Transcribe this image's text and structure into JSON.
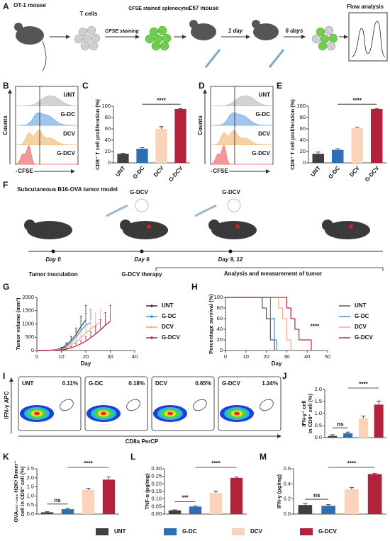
{
  "panel_labels": [
    "A",
    "B",
    "C",
    "D",
    "E",
    "F",
    "G",
    "H",
    "I",
    "J",
    "K",
    "L",
    "M"
  ],
  "diagram_a": {
    "labels": [
      "OT-1 mouse",
      "T cells",
      "CFSE staining",
      "CFSE stained splenocytes",
      "C57 mouse",
      "1 day",
      "6 days",
      "Flow analysis"
    ]
  },
  "flow_b": {
    "samples": [
      "UNT",
      "G-DC",
      "DCV",
      "G-DCV"
    ],
    "ylabel": "Counts",
    "xlabel": "CFSE"
  },
  "flow_d": {
    "samples": [
      "UNT",
      "G-DC",
      "DCV",
      "G-DCV"
    ],
    "ylabel": "Counts",
    "xlabel": "CFSE"
  },
  "diagram_f": {
    "title": "Subcutaneous B16-OVA tumor model",
    "treatments": [
      "G-DCV",
      "G-DCV"
    ],
    "days": [
      "Day 0",
      "Day 6",
      "Day 9, 12"
    ],
    "events": [
      "Tumor inoculation",
      "G-DCV therapy",
      "Analysis and measurement of tumor"
    ]
  },
  "flow_i": {
    "samples": [
      {
        "name": "UNT",
        "percent": "0.11%"
      },
      {
        "name": "G-DC",
        "percent": "0.18%"
      },
      {
        "name": "DCV",
        "percent": "0.65%"
      },
      {
        "name": "G-DCV",
        "percent": "1.24%"
      }
    ],
    "ylabel": "IFN-γ APC",
    "xlabel": "CD8a PerCP"
  },
  "legend": {
    "labels": [
      "UNT",
      "G-DC",
      "DCV",
      "G-DCV"
    ],
    "colors": [
      "#404040",
      "#2f6db5",
      "#fbd3b8",
      "#b2233b"
    ]
  },
  "chart_data": [
    {
      "type": "bar",
      "ylabel": "CD8⁺ T cell proliferation (%)",
      "categories": [
        "UNT",
        "G-DC",
        "DCV",
        "G-DCV"
      ],
      "values": [
        16,
        25,
        60,
        95
      ],
      "errors": [
        1,
        2,
        4,
        1
      ],
      "colors": [
        "#404040",
        "#2f6db5",
        "#fbd3b8",
        "#b2233b"
      ],
      "ylim": [
        0,
        100
      ],
      "yticks": [
        0,
        20,
        40,
        60,
        80,
        100
      ],
      "annotations": [
        "****"
      ]
    },
    {
      "type": "bar",
      "ylabel": "CD8⁺ T cell proliferation (%)",
      "categories": [
        "UNT",
        "G-DC",
        "DCV",
        "G-DCV"
      ],
      "values": [
        16,
        23,
        61,
        95
      ],
      "errors": [
        3,
        2,
        2,
        1
      ],
      "colors": [
        "#404040",
        "#2f6db5",
        "#fbd3b8",
        "#b2233b"
      ],
      "ylim": [
        0,
        100
      ],
      "yticks": [
        0,
        20,
        40,
        60,
        80,
        100
      ],
      "annotations": [
        "****"
      ]
    },
    {
      "type": "line",
      "xlabel": "Day",
      "ylabel": "Tumor volume (mm³)",
      "xlim": [
        0,
        40
      ],
      "xticks": [
        0,
        10,
        20,
        30,
        40
      ],
      "ylim": [
        0,
        2000
      ],
      "yticks": [
        0,
        500,
        1000,
        1500,
        2000
      ],
      "series": [
        {
          "name": "UNT",
          "color": "#333333",
          "x": [
            0,
            4,
            7,
            10,
            12,
            14,
            16,
            18,
            20
          ],
          "values": [
            0,
            0,
            20,
            80,
            200,
            380,
            600,
            900,
            1150
          ],
          "errors": [
            0,
            0,
            10,
            40,
            90,
            150,
            250,
            400,
            550
          ]
        },
        {
          "name": "G-DC",
          "color": "#3a8fd0",
          "x": [
            0,
            4,
            7,
            10,
            12,
            14,
            16,
            18,
            20,
            22
          ],
          "values": [
            0,
            0,
            15,
            60,
            150,
            300,
            500,
            750,
            950,
            1050
          ],
          "errors": [
            0,
            0,
            10,
            30,
            80,
            150,
            250,
            350,
            450,
            500
          ]
        },
        {
          "name": "DCV",
          "color": "#f4a98a",
          "x": [
            0,
            4,
            7,
            10,
            12,
            14,
            16,
            18,
            20,
            22,
            24,
            26
          ],
          "values": [
            0,
            0,
            10,
            40,
            100,
            200,
            320,
            480,
            650,
            800,
            950,
            1050
          ],
          "errors": [
            0,
            0,
            5,
            20,
            60,
            100,
            150,
            230,
            300,
            380,
            450,
            500
          ]
        },
        {
          "name": "G-DCV",
          "color": "#b2233b",
          "x": [
            0,
            4,
            7,
            10,
            12,
            14,
            16,
            18,
            20,
            22,
            24,
            26,
            28,
            30
          ],
          "values": [
            0,
            0,
            5,
            20,
            50,
            100,
            170,
            250,
            350,
            480,
            620,
            780,
            950,
            1100
          ],
          "errors": [
            0,
            0,
            5,
            10,
            30,
            50,
            80,
            120,
            170,
            230,
            300,
            380,
            480,
            600
          ]
        }
      ]
    },
    {
      "type": "step",
      "xlabel": "Day",
      "ylabel": "Percentage survival (%)",
      "xlim": [
        0,
        50
      ],
      "xticks": [
        0,
        10,
        20,
        30,
        40,
        50
      ],
      "ylim": [
        0,
        100
      ],
      "yticks": [
        0,
        20,
        40,
        60,
        80,
        100
      ],
      "annotations": [
        "****"
      ],
      "series": [
        {
          "name": "UNT",
          "color": "#555555",
          "x": [
            0,
            18,
            20,
            22,
            24
          ],
          "values": [
            100,
            80,
            60,
            20,
            0
          ]
        },
        {
          "name": "G-DC",
          "color": "#3a8fd0",
          "x": [
            0,
            22,
            24,
            25
          ],
          "values": [
            100,
            60,
            20,
            0
          ]
        },
        {
          "name": "DCV",
          "color": "#f4a98a",
          "x": [
            0,
            26,
            28,
            30,
            32
          ],
          "values": [
            100,
            80,
            60,
            20,
            0
          ]
        },
        {
          "name": "G-DCV",
          "color": "#d0213a",
          "x": [
            0,
            30,
            32,
            34,
            36,
            42
          ],
          "values": [
            100,
            80,
            60,
            40,
            20,
            0
          ]
        }
      ]
    },
    {
      "type": "bar",
      "ylabel": [
        "IFN-γ⁺ cell",
        "in CD8⁺ cell (%)"
      ],
      "values": [
        0.07,
        0.18,
        0.8,
        1.37
      ],
      "errors": [
        0.05,
        0.05,
        0.1,
        0.15
      ],
      "colors": [
        "#404040",
        "#2f6db5",
        "#fbd3b8",
        "#b2233b"
      ],
      "ylim": [
        0,
        2
      ],
      "yticks": [
        {
          "value": 0,
          "label": "0.0"
        },
        0.5,
        {
          "value": 1,
          "label": "1.0"
        },
        1.5,
        {
          "value": 2,
          "label": "2.0"
        }
      ],
      "annotations": [
        "ns",
        "****"
      ]
    },
    {
      "type": "bar",
      "ylabel": [
        "OVA₂₅₇₋₂₆₄ H2Kᵇ Dimer⁺",
        "cell in CD8⁺ cell (%)"
      ],
      "values": [
        0.1,
        0.27,
        1.35,
        1.9
      ],
      "errors": [
        0.03,
        0.05,
        0.07,
        0.15
      ],
      "colors": [
        "#404040",
        "#2f6db5",
        "#fbd3b8",
        "#b2233b"
      ],
      "ylim": [
        0,
        2.5
      ],
      "yticks": [
        {
          "value": 0,
          "label": "0.0"
        },
        0.5,
        {
          "value": 1,
          "label": "1.0"
        },
        1.5,
        {
          "value": 2,
          "label": "2.0"
        },
        2.5
      ],
      "annotations": [
        "ns",
        "****"
      ]
    },
    {
      "type": "bar",
      "ylabel": "TNF-α (pg/mg)",
      "values": [
        0.025,
        0.05,
        0.14,
        0.24
      ],
      "errors": [
        0.003,
        0.004,
        0.012,
        0.005
      ],
      "colors": [
        "#404040",
        "#2f6db5",
        "#fbd3b8",
        "#b2233b"
      ],
      "ylim": [
        0,
        0.3
      ],
      "yticks": [
        {
          "value": 0,
          "label": "0.00"
        },
        0.05,
        {
          "value": 0.1,
          "label": "0.10"
        },
        0.15,
        {
          "value": 0.2,
          "label": "0.20"
        },
        0.25,
        {
          "value": 0.3,
          "label": "0.30"
        }
      ],
      "annotations": [
        "***",
        "****"
      ]
    },
    {
      "type": "bar",
      "ylabel": "IFN-γ (pg/mg)",
      "values": [
        0.12,
        0.11,
        0.33,
        0.53
      ],
      "errors": [
        0.02,
        0.015,
        0.02,
        0.01
      ],
      "colors": [
        "#404040",
        "#2f6db5",
        "#fbd3b8",
        "#b2233b"
      ],
      "ylim": [
        0,
        0.6
      ],
      "yticks": [
        {
          "value": 0,
          "label": "0.0"
        },
        0.2,
        0.4,
        0.6
      ],
      "annotations": [
        "ns",
        "****"
      ]
    }
  ]
}
